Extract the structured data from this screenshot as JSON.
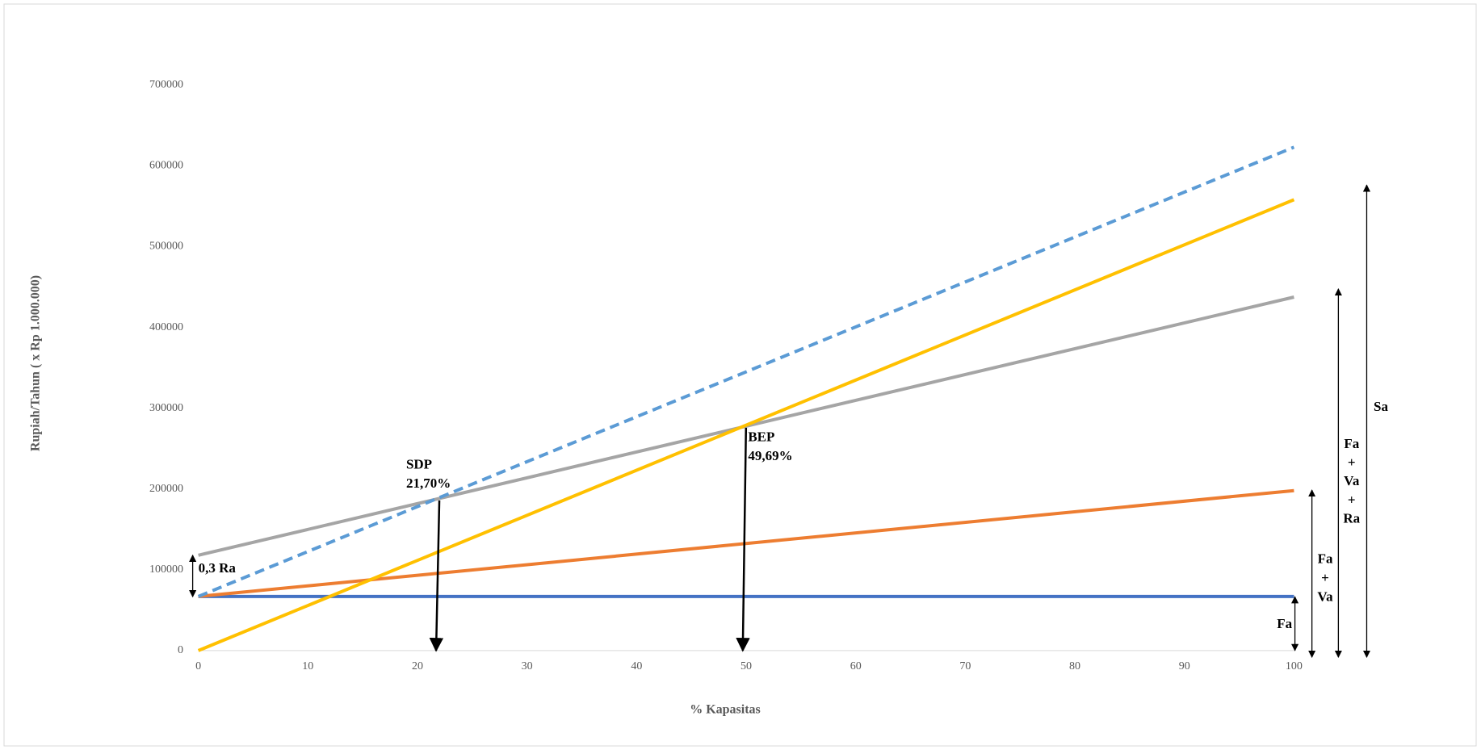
{
  "chart_data": {
    "type": "line",
    "xlabel": "% Kapasitas",
    "ylabel": "Rupiah/Tahun ( x Rp 1.000.000)",
    "x": [
      0,
      100
    ],
    "xlim": [
      0,
      100
    ],
    "xticks": [
      0,
      10,
      20,
      30,
      40,
      50,
      60,
      70,
      80,
      90,
      100
    ],
    "ylim": [
      0,
      700000
    ],
    "yticks": [
      0,
      100000,
      200000,
      300000,
      400000,
      500000,
      600000,
      700000
    ],
    "grid": false,
    "series": [
      {
        "color": "#4472c4",
        "values": [
          67000,
          67000
        ]
      },
      {
        "color": "#ed7d31",
        "values": [
          67000,
          198000
        ]
      },
      {
        "color": "#a5a5a5",
        "values": [
          118000,
          437500
        ]
      },
      {
        "color": "#ffc000",
        "values": [
          0,
          558000
        ]
      },
      {
        "color": "#5b9bd5",
        "dashed": true,
        "values": [
          67000,
          623000
        ]
      }
    ],
    "annotations": [
      {
        "lines": [
          "0,3 Ra"
        ]
      },
      {
        "lines": [
          "SDP",
          "21,70%"
        ],
        "x": 21.7
      },
      {
        "lines": [
          "BEP",
          "49,69%"
        ],
        "x": 49.69
      },
      {
        "lines": [
          "Fa"
        ]
      },
      {
        "lines": [
          "Fa",
          "+",
          "Va"
        ]
      },
      {
        "lines": [
          "Fa",
          "+",
          "Va",
          "+",
          "Ra"
        ]
      },
      {
        "lines": [
          "Sa"
        ]
      }
    ]
  }
}
